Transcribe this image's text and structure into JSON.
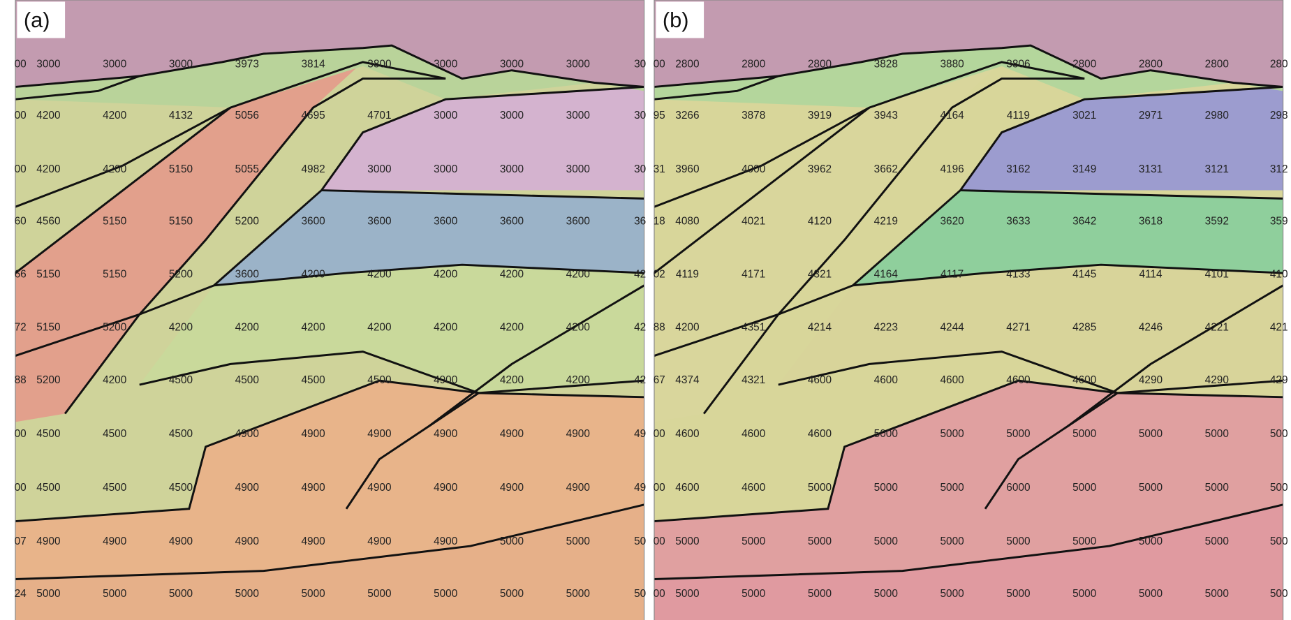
{
  "panels": [
    {
      "label": "(a)",
      "rows": [
        [
          "00",
          "3000",
          "3000",
          "3000",
          "3973",
          "3814",
          "3800",
          "3000",
          "3000",
          "3000",
          "30"
        ],
        [
          "00",
          "4200",
          "4200",
          "4132",
          "5056",
          "4695",
          "4701",
          "3000",
          "3000",
          "3000",
          "30"
        ],
        [
          "00",
          "4200",
          "4200",
          "5150",
          "5055",
          "4982",
          "3000",
          "3000",
          "3000",
          "3000",
          "30"
        ],
        [
          "60",
          "4560",
          "5150",
          "5150",
          "5200",
          "3600",
          "3600",
          "3600",
          "3600",
          "3600",
          "36"
        ],
        [
          "66",
          "5150",
          "5150",
          "5200",
          "3600",
          "4200",
          "4200",
          "4200",
          "4200",
          "4200",
          "42"
        ],
        [
          "72",
          "5150",
          "5200",
          "4200",
          "4200",
          "4200",
          "4200",
          "4200",
          "4200",
          "4200",
          "42"
        ],
        [
          "88",
          "5200",
          "4200",
          "4500",
          "4500",
          "4500",
          "4500",
          "4900",
          "4200",
          "4200",
          "42"
        ],
        [
          "00",
          "4500",
          "4500",
          "4500",
          "4900",
          "4900",
          "4900",
          "4900",
          "4900",
          "4900",
          "49"
        ],
        [
          "00",
          "4500",
          "4500",
          "4500",
          "4900",
          "4900",
          "4900",
          "4900",
          "4900",
          "4900",
          "49"
        ],
        [
          "07",
          "4900",
          "4900",
          "4900",
          "4900",
          "4900",
          "4900",
          "4900",
          "5000",
          "5000",
          "50"
        ],
        [
          "24",
          "5000",
          "5000",
          "5000",
          "5000",
          "5000",
          "5000",
          "5000",
          "5000",
          "5000",
          "50"
        ]
      ]
    },
    {
      "label": "(b)",
      "rows": [
        [
          "00",
          "2800",
          "2800",
          "2800",
          "3828",
          "3880",
          "3806",
          "2800",
          "2800",
          "2800",
          "280"
        ],
        [
          "95",
          "3266",
          "3878",
          "3919",
          "3943",
          "4164",
          "4119",
          "3021",
          "2971",
          "2980",
          "298"
        ],
        [
          "31",
          "3960",
          "4000",
          "3962",
          "3662",
          "4196",
          "3162",
          "3149",
          "3131",
          "3121",
          "312"
        ],
        [
          "18",
          "4080",
          "4021",
          "4120",
          "4219",
          "3620",
          "3633",
          "3642",
          "3618",
          "3592",
          "359"
        ],
        [
          "02",
          "4119",
          "4171",
          "4321",
          "4164",
          "4117",
          "4133",
          "4145",
          "4114",
          "4101",
          "410"
        ],
        [
          "88",
          "4200",
          "4351",
          "4214",
          "4223",
          "4244",
          "4271",
          "4285",
          "4246",
          "4221",
          "421"
        ],
        [
          "67",
          "4374",
          "4321",
          "4600",
          "4600",
          "4600",
          "4600",
          "4600",
          "4290",
          "4290",
          "429"
        ],
        [
          "00",
          "4600",
          "4600",
          "4600",
          "5000",
          "5000",
          "5000",
          "5000",
          "5000",
          "5000",
          "500"
        ],
        [
          "00",
          "4600",
          "4600",
          "5000",
          "5000",
          "5000",
          "6000",
          "5000",
          "5000",
          "5000",
          "500"
        ],
        [
          "00",
          "5000",
          "5000",
          "5000",
          "5000",
          "5000",
          "5000",
          "5000",
          "5000",
          "5000",
          "500"
        ],
        [
          "00",
          "5000",
          "5000",
          "5000",
          "5000",
          "5000",
          "5000",
          "5000",
          "5000",
          "5000",
          "500"
        ]
      ]
    }
  ]
}
